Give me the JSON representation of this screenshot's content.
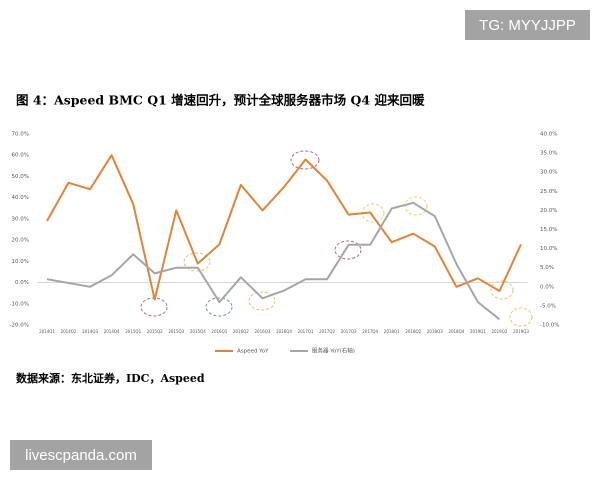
{
  "chart_data": {
    "type": "line",
    "title": "图 4：Aspeed BMC Q1 增速回升，预计全球服务器市场 Q4 迎来回暖",
    "source": "数据来源：东北证券，IDC，Aspeed",
    "categories": [
      "2014Q1",
      "2014Q2",
      "2014Q3",
      "2014Q4",
      "2015Q1",
      "2015Q2",
      "2015Q3",
      "2015Q4",
      "2016Q1",
      "2016Q2",
      "2016Q3",
      "2016Q4",
      "2017Q1",
      "2017Q2",
      "2017Q3",
      "2017Q4",
      "2018Q1",
      "2018Q2",
      "2018Q3",
      "2018Q4",
      "2019Q1",
      "2019Q2",
      "2019Q3"
    ],
    "series": [
      {
        "name": "Aspeed YoY",
        "color": "#e0843a",
        "values": [
          29,
          47,
          44,
          60,
          37,
          -8,
          34,
          9,
          18,
          46,
          34,
          45,
          58,
          48,
          32,
          33,
          19,
          23,
          17,
          -2,
          2,
          -4,
          18
        ]
      },
      {
        "name": "服务器 YoY(右轴)",
        "color": "#a6a6a6",
        "axis": "y2",
        "values": [
          2,
          1,
          0,
          3,
          8.5,
          3.5,
          5,
          5,
          -4,
          2.5,
          -3,
          -1,
          2,
          2,
          11,
          11,
          20.5,
          22,
          18.5,
          6,
          -4,
          -8.5,
          null
        ]
      }
    ],
    "ylim": [
      -20,
      70
    ],
    "yticks": [
      {
        "value": -20,
        "label": "-20.0%"
      },
      {
        "value": -10,
        "label": "-10.0%"
      },
      {
        "value": 0,
        "label": "0.0%"
      },
      {
        "value": 10,
        "label": "10.0%"
      },
      {
        "value": 20,
        "label": "20.0%"
      },
      {
        "value": 30,
        "label": "30.0%"
      },
      {
        "value": 40,
        "label": "40.0%"
      },
      {
        "value": 50,
        "label": "50.0%"
      },
      {
        "value": 60,
        "label": "60.0%"
      },
      {
        "value": 70,
        "label": "70.0%"
      }
    ],
    "y2lim": [
      -10,
      40
    ],
    "y2ticks": [
      {
        "value": -10,
        "label": "-10.0%"
      },
      {
        "value": -5,
        "label": "-5.0%"
      },
      {
        "value": 0,
        "label": "0.0%"
      },
      {
        "value": 5,
        "label": "5.0%"
      },
      {
        "value": 10,
        "label": "10.0%"
      },
      {
        "value": 15,
        "label": "15.0%"
      },
      {
        "value": 20,
        "label": "20.0%"
      },
      {
        "value": 25,
        "label": "25.0%"
      },
      {
        "value": 30,
        "label": "30.0%"
      },
      {
        "value": 35,
        "label": "35.0%"
      },
      {
        "value": 40,
        "label": "40.0%"
      }
    ],
    "grid": false
  },
  "watermarks": [
    "TG: MYYJJPP",
    "livescpanda.com"
  ]
}
